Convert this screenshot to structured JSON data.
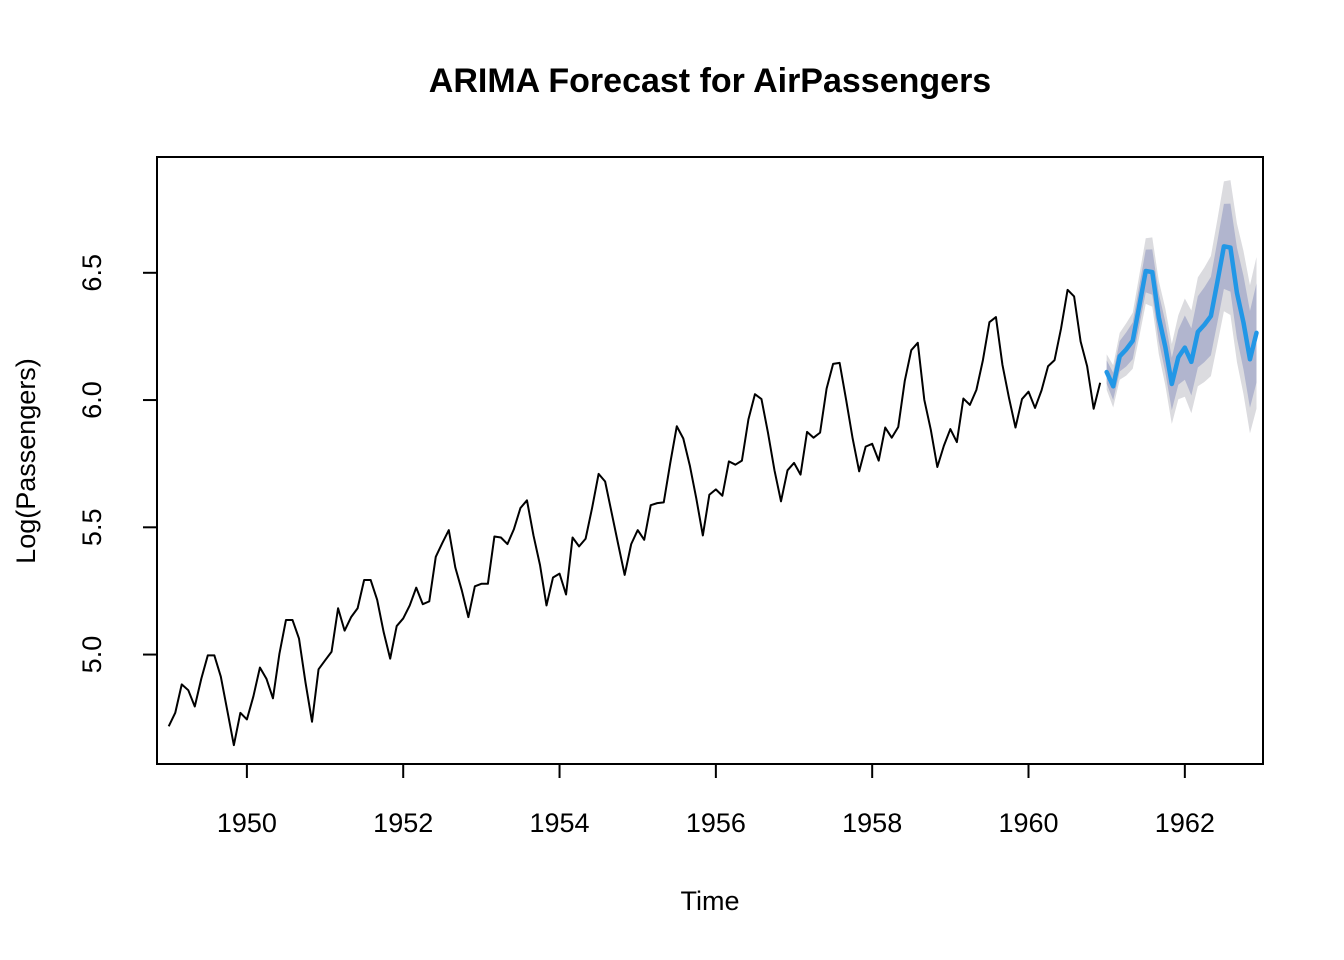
{
  "chart_data": {
    "type": "line",
    "title": "ARIMA Forecast for AirPassengers",
    "xlabel": "Time",
    "ylabel": "Log(Passengers)",
    "xlim": [
      1948.85,
      1963.0
    ],
    "ylim": [
      4.57,
      6.955
    ],
    "x_ticks": [
      1950,
      1952,
      1954,
      1956,
      1958,
      1960,
      1962
    ],
    "y_ticks": [
      5.0,
      5.5,
      6.0,
      6.5
    ],
    "grid": false,
    "legend": "none",
    "colors": {
      "observed": "#000000",
      "forecast": "#2297E6",
      "band80": "#B1B5CE",
      "band95": "#DBDBDF"
    },
    "series": [
      {
        "x_start": 1949.0,
        "frequency": 12,
        "values": [
          4.718,
          4.771,
          4.883,
          4.86,
          4.796,
          4.905,
          4.997,
          4.997,
          4.913,
          4.779,
          4.644,
          4.771,
          4.745,
          4.836,
          4.949,
          4.905,
          4.828,
          5.004,
          5.136,
          5.136,
          5.063,
          4.89,
          4.736,
          4.942,
          4.977,
          5.011,
          5.182,
          5.094,
          5.147,
          5.182,
          5.293,
          5.293,
          5.215,
          5.088,
          4.984,
          5.112,
          5.142,
          5.193,
          5.263,
          5.198,
          5.209,
          5.384,
          5.438,
          5.489,
          5.342,
          5.252,
          5.147,
          5.268,
          5.278,
          5.278,
          5.464,
          5.46,
          5.434,
          5.493,
          5.576,
          5.606,
          5.468,
          5.352,
          5.193,
          5.303,
          5.318,
          5.236,
          5.46,
          5.425,
          5.455,
          5.576,
          5.71,
          5.68,
          5.557,
          5.434,
          5.313,
          5.434,
          5.489,
          5.451,
          5.587,
          5.595,
          5.598,
          5.753,
          5.897,
          5.849,
          5.743,
          5.613,
          5.468,
          5.628,
          5.649,
          5.624,
          5.759,
          5.746,
          5.762,
          5.924,
          6.023,
          6.004,
          5.872,
          5.724,
          5.602,
          5.724,
          5.753,
          5.707,
          5.875,
          5.852,
          5.872,
          6.045,
          6.142,
          6.146,
          6.001,
          5.849,
          5.72,
          5.817,
          5.828,
          5.762,
          5.892,
          5.852,
          5.894,
          6.075,
          6.196,
          6.225,
          6.001,
          5.883,
          5.737,
          5.82,
          5.886,
          5.835,
          6.006,
          5.981,
          6.04,
          6.157,
          6.306,
          6.326,
          6.138,
          6.009,
          5.892,
          6.004,
          6.033,
          5.969,
          6.038,
          6.133,
          6.157,
          6.282,
          6.433,
          6.407,
          6.23,
          6.133,
          5.966,
          6.068
        ]
      },
      {
        "x_start": 1961.0,
        "frequency": 12,
        "values": [
          6.11,
          6.054,
          6.172,
          6.199,
          6.233,
          6.369,
          6.507,
          6.503,
          6.325,
          6.209,
          6.063,
          6.168,
          6.206,
          6.15,
          6.268,
          6.296,
          6.33,
          6.465,
          6.604,
          6.599,
          6.421,
          6.305,
          6.16,
          6.264
        ],
        "lo80": [
          6.064,
          6.0,
          6.112,
          6.132,
          6.161,
          6.29,
          6.423,
          6.414,
          6.231,
          6.11,
          5.96,
          6.06,
          6.08,
          6.018,
          6.128,
          6.149,
          6.176,
          6.305,
          6.437,
          6.426,
          6.243,
          6.121,
          5.97,
          6.069
        ],
        "hi80": [
          6.156,
          6.108,
          6.232,
          6.266,
          6.305,
          6.448,
          6.591,
          6.592,
          6.419,
          6.308,
          6.166,
          6.276,
          6.332,
          6.282,
          6.408,
          6.443,
          6.484,
          6.625,
          6.771,
          6.772,
          6.599,
          6.489,
          6.35,
          6.459
        ],
        "lo95": [
          6.04,
          5.971,
          6.08,
          6.096,
          6.123,
          6.248,
          6.378,
          6.367,
          6.181,
          6.058,
          5.906,
          6.003,
          6.013,
          5.948,
          6.054,
          6.071,
          6.094,
          6.22,
          6.349,
          6.334,
          6.149,
          6.024,
          5.869,
          5.966
        ],
        "hi95": [
          6.18,
          6.137,
          6.264,
          6.302,
          6.343,
          6.49,
          6.636,
          6.639,
          6.469,
          6.36,
          6.22,
          6.333,
          6.399,
          6.352,
          6.482,
          6.521,
          6.566,
          6.71,
          6.859,
          6.864,
          6.693,
          6.586,
          6.451,
          6.562
        ]
      }
    ]
  }
}
